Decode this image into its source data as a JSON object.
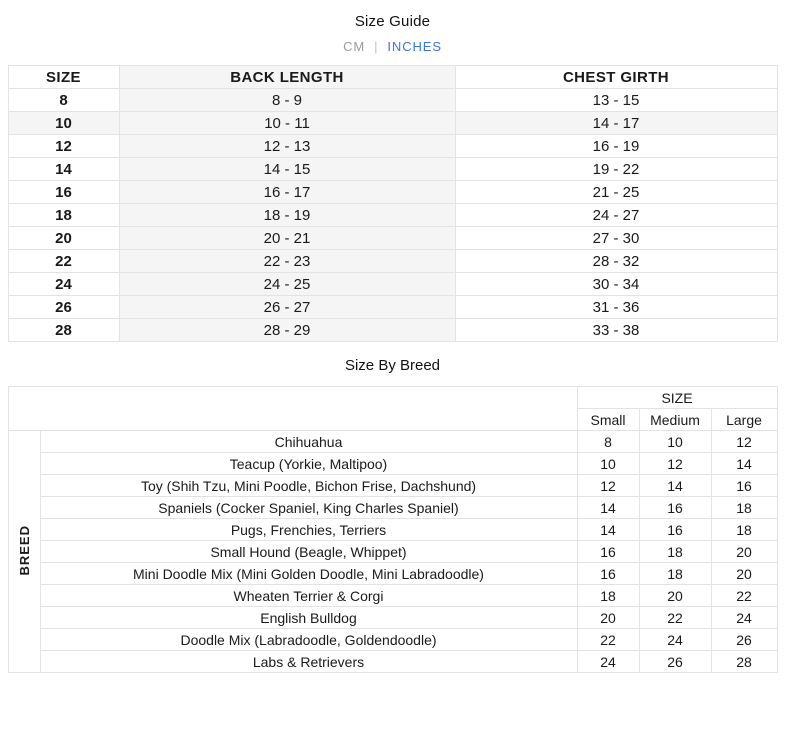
{
  "header": {
    "title": "Size Guide",
    "separator": "|",
    "unit_tabs": [
      {
        "label": "CM",
        "active": false
      },
      {
        "label": "INCHES",
        "active": true
      }
    ]
  },
  "size_guide_table": {
    "active_unit": "INCHES",
    "columns": [
      "SIZE",
      "BACK LENGTH",
      "CHEST GIRTH"
    ],
    "shaded_column": "BACK LENGTH",
    "highlighted_size": "10",
    "rows": [
      {
        "size": "8",
        "back_length": "8 - 9",
        "chest_girth": "13 - 15"
      },
      {
        "size": "10",
        "back_length": "10 - 11",
        "chest_girth": "14 - 17"
      },
      {
        "size": "12",
        "back_length": "12 - 13",
        "chest_girth": "16 - 19"
      },
      {
        "size": "14",
        "back_length": "14 - 15",
        "chest_girth": "19 - 22"
      },
      {
        "size": "16",
        "back_length": "16 - 17",
        "chest_girth": "21 - 25"
      },
      {
        "size": "18",
        "back_length": "18 - 19",
        "chest_girth": "24 - 27"
      },
      {
        "size": "20",
        "back_length": "20 - 21",
        "chest_girth": "27 - 30"
      },
      {
        "size": "22",
        "back_length": "22 - 23",
        "chest_girth": "28 - 32"
      },
      {
        "size": "24",
        "back_length": "24 - 25",
        "chest_girth": "30 - 34"
      },
      {
        "size": "26",
        "back_length": "26 - 27",
        "chest_girth": "31 - 36"
      },
      {
        "size": "28",
        "back_length": "28 - 29",
        "chest_girth": "33 - 38"
      }
    ]
  },
  "breed_table": {
    "title": "Size By Breed",
    "size_group_header": "SIZE",
    "size_columns": [
      "Small",
      "Medium",
      "Large"
    ],
    "row_group_header": "BREED",
    "rows": [
      {
        "breed": "Chihuahua",
        "sizes": [
          "8",
          "10",
          "12"
        ]
      },
      {
        "breed": "Teacup (Yorkie, Maltipoo)",
        "sizes": [
          "10",
          "12",
          "14"
        ]
      },
      {
        "breed": "Toy (Shih Tzu, Mini Poodle, Bichon Frise, Dachshund)",
        "sizes": [
          "12",
          "14",
          "16"
        ]
      },
      {
        "breed": "Spaniels (Cocker Spaniel, King Charles Spaniel)",
        "sizes": [
          "14",
          "16",
          "18"
        ]
      },
      {
        "breed": "Pugs, Frenchies, Terriers",
        "sizes": [
          "14",
          "16",
          "18"
        ]
      },
      {
        "breed": "Small Hound (Beagle, Whippet)",
        "sizes": [
          "16",
          "18",
          "20"
        ]
      },
      {
        "breed": "Mini Doodle Mix (Mini Golden Doodle, Mini Labradoodle)",
        "sizes": [
          "16",
          "18",
          "20"
        ]
      },
      {
        "breed": "Wheaten Terrier & Corgi",
        "sizes": [
          "18",
          "20",
          "22"
        ]
      },
      {
        "breed": "English Bulldog",
        "sizes": [
          "20",
          "22",
          "24"
        ]
      },
      {
        "breed": "Doodle Mix (Labradoodle, Goldendoodle)",
        "sizes": [
          "22",
          "24",
          "26"
        ]
      },
      {
        "breed": "Labs & Retrievers",
        "sizes": [
          "24",
          "26",
          "28"
        ]
      }
    ]
  },
  "colors": {
    "accent_blue": "#3a77e0",
    "inactive_gray": "#9b9b9b",
    "border_gray": "#e3e3e3",
    "shaded_fill": "#f5f5f5",
    "row_highlight": "#f5f5f5",
    "text": "#1a1a1a"
  }
}
